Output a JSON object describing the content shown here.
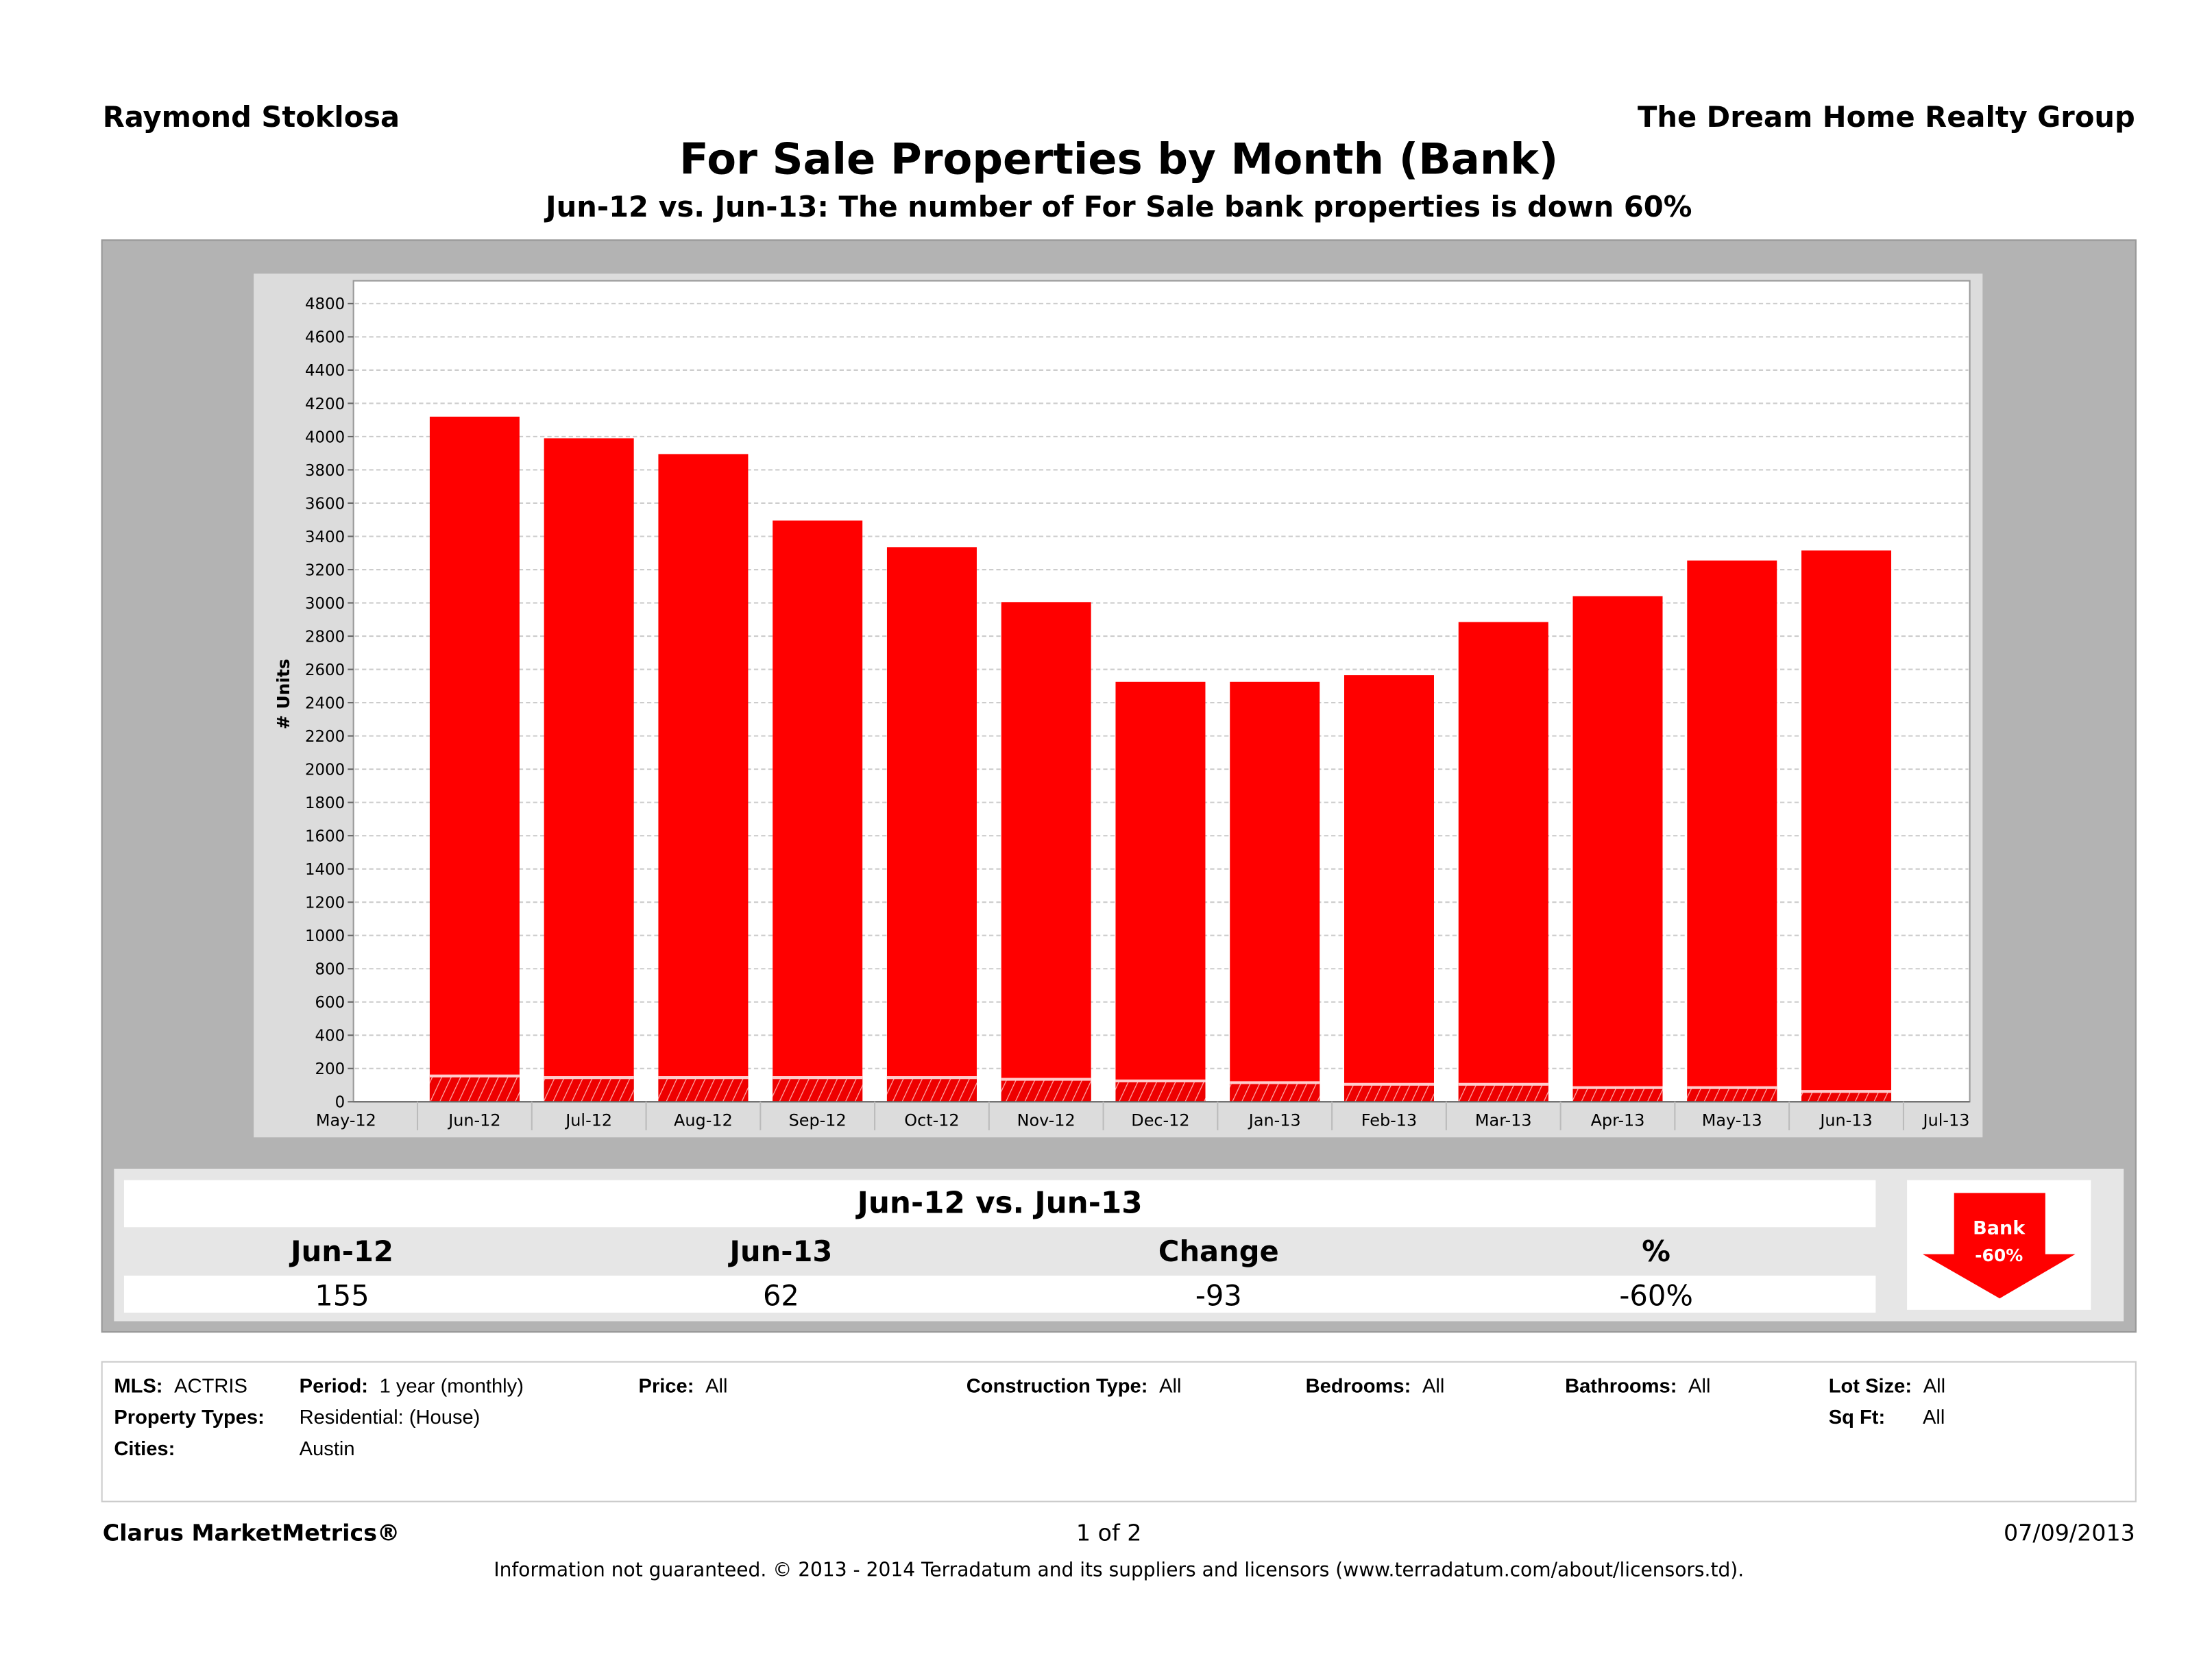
{
  "header": {
    "agent": "Raymond Stoklosa",
    "company": "The Dream Home Realty Group"
  },
  "title": "For Sale Properties by Month (Bank)",
  "subtitle": "Jun-12 vs. Jun-13: The number of For Sale bank properties is down 60%",
  "colors": {
    "bar": "#ff0000",
    "panel": "#b3b3b3",
    "chart_bg": "#dcdcdc"
  },
  "chart_data": {
    "type": "bar",
    "stacked_overlay": true,
    "ylabel": "# Units",
    "ylim": [
      0,
      4800
    ],
    "yticks": [
      0,
      200,
      400,
      600,
      800,
      1000,
      1200,
      1400,
      1600,
      1800,
      2000,
      2200,
      2400,
      2600,
      2800,
      3000,
      3200,
      3400,
      3600,
      3800,
      4000,
      4200,
      4400,
      4600,
      4800
    ],
    "grid": true,
    "x_tick_labels": [
      "May-12",
      "Jun-12",
      "Jul-12",
      "Aug-12",
      "Sep-12",
      "Oct-12",
      "Nov-12",
      "Dec-12",
      "Jan-13",
      "Feb-13",
      "Mar-13",
      "Apr-13",
      "May-13",
      "Jun-13",
      "Jul-13"
    ],
    "categories": [
      "Jun-12",
      "Jul-12",
      "Aug-12",
      "Sep-12",
      "Oct-12",
      "Nov-12",
      "Dec-12",
      "Jan-13",
      "Feb-13",
      "Mar-13",
      "Apr-13",
      "May-13",
      "Jun-13"
    ],
    "series": [
      {
        "values": [
          4120,
          3990,
          3895,
          3495,
          3335,
          3005,
          2525,
          2525,
          2565,
          2885,
          3040,
          3255,
          3315
        ],
        "pattern": "solid"
      },
      {
        "values": [
          155,
          145,
          145,
          145,
          145,
          135,
          125,
          115,
          105,
          105,
          85,
          85,
          62
        ],
        "pattern": "hatched"
      }
    ]
  },
  "summary": {
    "heading": "Jun-12 vs. Jun-13",
    "columns": [
      "Jun-12",
      "Jun-13",
      "Change",
      "%"
    ],
    "values": [
      "155",
      "62",
      "-93",
      "-60%"
    ],
    "badge": {
      "label": "Bank",
      "value": "-60%",
      "icon": "down-arrow-icon"
    }
  },
  "filters": {
    "mls_label": "MLS:",
    "mls": "ACTRIS",
    "period_label": "Period:",
    "period": "1 year (monthly)",
    "price_label": "Price:",
    "price": "All",
    "construction_label": "Construction Type:",
    "construction": "All",
    "bedrooms_label": "Bedrooms:",
    "bedrooms": "All",
    "bathrooms_label": "Bathrooms:",
    "bathrooms": "All",
    "lot_label": "Lot Size:",
    "lot": "All",
    "proptype_label": "Property Types:",
    "proptype": "Residential: (House)",
    "sqft_label": "Sq Ft:",
    "sqft": "All",
    "cities_label": "Cities:",
    "cities": "Austin"
  },
  "footer": {
    "brand": "Clarus MarketMetrics®",
    "page": "1 of 2",
    "date": "07/09/2013",
    "disclaimer": "Information not guaranteed.  © 2013 - 2014 Terradatum and its suppliers and licensors (www.terradatum.com/about/licensors.td)."
  }
}
